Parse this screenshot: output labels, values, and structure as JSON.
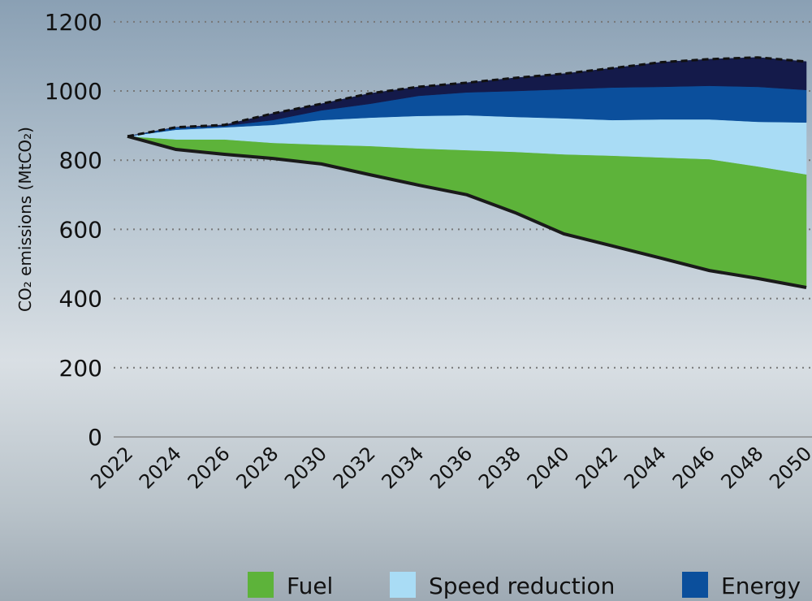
{
  "chart_data": {
    "type": "stacked_area",
    "y_label": "CO₂ emissions (MtCO₂)",
    "x": [
      2022,
      2024,
      2026,
      2028,
      2030,
      2032,
      2034,
      2036,
      2038,
      2040,
      2042,
      2044,
      2046,
      2048,
      2050
    ],
    "xlim": [
      2022,
      2050
    ],
    "xticks": [
      2022,
      2024,
      2026,
      2028,
      2030,
      2032,
      2034,
      2036,
      2038,
      2040,
      2042,
      2044,
      2046,
      2048,
      2050
    ],
    "ylim": [
      0,
      1263
    ],
    "yticks": [
      0,
      200,
      400,
      600,
      800,
      1000,
      1200
    ],
    "grid": true,
    "stack_outline": "dashed",
    "series": [
      {
        "color": "#1a1a1a",
        "kind": "line",
        "values": [
          869,
          831,
          817,
          805,
          789,
          758,
          728,
          700,
          648,
          587,
          552,
          517,
          481,
          458,
          432
        ]
      },
      {
        "name": "Fuel",
        "color": "#5db33a",
        "values": [
          0,
          29,
          43,
          45,
          56,
          83,
          106,
          129,
          176,
          230,
          261,
          291,
          322,
          324,
          327
        ]
      },
      {
        "name": "Speed reduction",
        "color": "#a9dcf5",
        "values": [
          0,
          28,
          35,
          52,
          71,
          82,
          94,
          101,
          101,
          104,
          103,
          110,
          115,
          129,
          150
        ]
      },
      {
        "name": "Energy",
        "color": "#0b4f9c",
        "values": [
          0,
          7,
          4,
          14,
          28,
          40,
          58,
          66,
          75,
          84,
          94,
          94,
          97,
          101,
          94
        ]
      },
      {
        "color": "#141a4a",
        "values": [
          0,
          0,
          3,
          19,
          19,
          30,
          26,
          28,
          38,
          45,
          56,
          71,
          77,
          85,
          82
        ]
      }
    ]
  }
}
